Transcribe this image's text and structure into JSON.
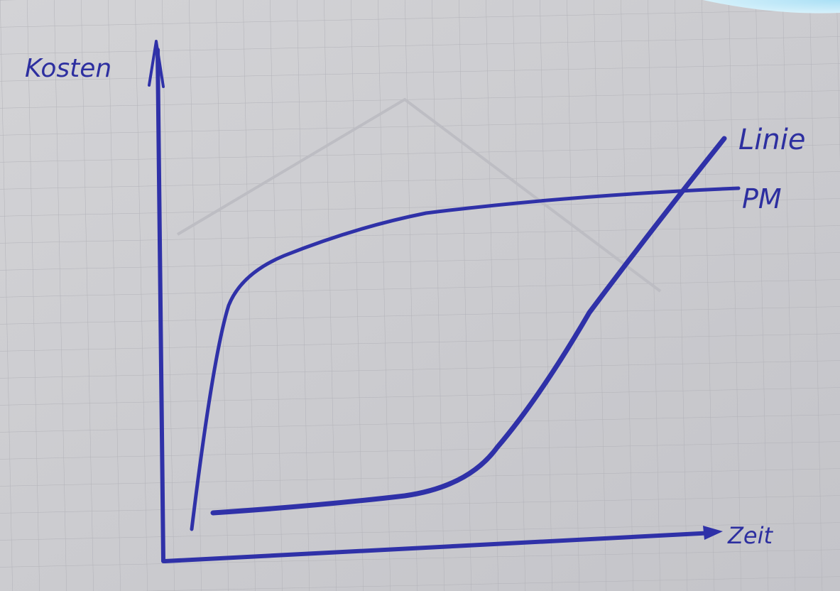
{
  "labels": {
    "y_axis": "Kosten",
    "x_axis": "Zeit",
    "linie": "Linie",
    "pm": "PM"
  }
}
